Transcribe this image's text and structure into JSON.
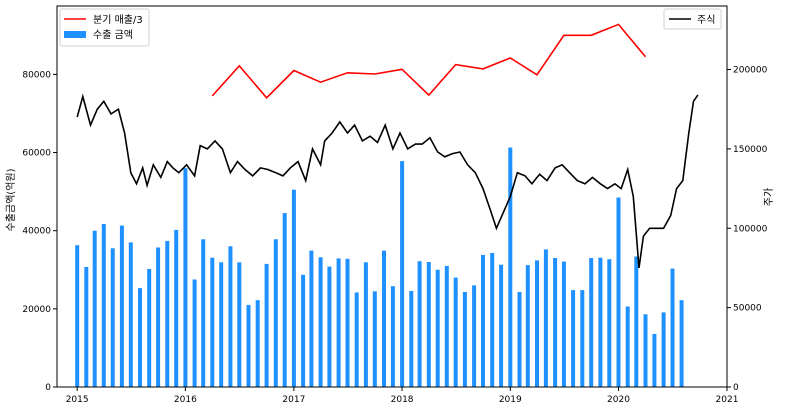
{
  "chart_data": {
    "type": "bar",
    "xlabel": "",
    "ylabel_left": "수출금액(억원)",
    "ylabel_right": "주가",
    "x_ticks": [
      "2015",
      "2016",
      "2017",
      "2018",
      "2019",
      "2020",
      "2021"
    ],
    "x_range": [
      "2014-10-25",
      "2021-01-01"
    ],
    "y_left_ticks": [
      "0",
      "20000",
      "40000",
      "60000",
      "80000"
    ],
    "y_left_range": [
      0,
      97500
    ],
    "y_right_ticks": [
      "0",
      "50000",
      "100000",
      "150000",
      "200000"
    ],
    "y_right_range": [
      0,
      240000
    ],
    "grid": false,
    "legend_left": {
      "position": "top-left",
      "entries": [
        "분기 매출/3",
        "수출 금액"
      ]
    },
    "legend_right": {
      "position": "top-right",
      "entries": [
        "주식"
      ]
    },
    "colors": {
      "bars": "#1e90ff",
      "sales": "#ff0000",
      "stock": "#000000"
    },
    "series": [
      {
        "name": "수출 금액",
        "kind": "bar",
        "axis": "left",
        "x": [
          "2015-01-01",
          "2015-02-01",
          "2015-03-01",
          "2015-04-01",
          "2015-05-01",
          "2015-06-01",
          "2015-07-01",
          "2015-08-01",
          "2015-09-01",
          "2015-10-01",
          "2015-11-01",
          "2015-12-01",
          "2016-01-01",
          "2016-02-01",
          "2016-03-01",
          "2016-04-01",
          "2016-05-01",
          "2016-06-01",
          "2016-07-01",
          "2016-08-01",
          "2016-09-01",
          "2016-10-01",
          "2016-11-01",
          "2016-12-01",
          "2017-01-01",
          "2017-02-01",
          "2017-03-01",
          "2017-04-01",
          "2017-05-01",
          "2017-06-01",
          "2017-07-01",
          "2017-08-01",
          "2017-09-01",
          "2017-10-01",
          "2017-11-01",
          "2017-12-01",
          "2018-01-01",
          "2018-02-01",
          "2018-03-01",
          "2018-04-01",
          "2018-05-01",
          "2018-06-01",
          "2018-07-01",
          "2018-08-01",
          "2018-09-01",
          "2018-10-01",
          "2018-11-01",
          "2018-12-01",
          "2019-01-01",
          "2019-02-01",
          "2019-03-01",
          "2019-04-01",
          "2019-05-01",
          "2019-06-01",
          "2019-07-01",
          "2019-08-01",
          "2019-09-01",
          "2019-10-01",
          "2019-11-01",
          "2019-12-01",
          "2020-01-01",
          "2020-02-01",
          "2020-03-01",
          "2020-04-01",
          "2020-05-01",
          "2020-06-01",
          "2020-07-01",
          "2020-08-01"
        ],
        "values": [
          36300,
          30700,
          40000,
          41700,
          35500,
          41300,
          37000,
          25300,
          30200,
          35700,
          37400,
          40200,
          56000,
          27500,
          37800,
          33100,
          31900,
          36000,
          31900,
          21000,
          22200,
          31500,
          37800,
          44500,
          50500,
          28700,
          34900,
          33200,
          30800,
          32900,
          32800,
          24200,
          31900,
          24500,
          34900,
          25800,
          57800,
          24600,
          32200,
          32000,
          30000,
          31000,
          28000,
          24300,
          26000,
          33800,
          34300,
          31300,
          61300,
          24300,
          31200,
          32400,
          35200,
          33000,
          32100,
          24800,
          24800,
          33000,
          33100,
          32700,
          48500,
          20600,
          33400,
          18600,
          13600,
          19100,
          30300,
          22200
        ]
      },
      {
        "name": "분기 매출/3",
        "kind": "line",
        "axis": "left",
        "x": [
          "2016-04-01",
          "2016-07-01",
          "2016-10-01",
          "2017-01-01",
          "2017-04-01",
          "2017-07-01",
          "2017-10-01",
          "2018-01-01",
          "2018-04-01",
          "2018-07-01",
          "2018-10-01",
          "2019-01-01",
          "2019-04-01",
          "2019-07-01",
          "2019-10-01",
          "2020-01-01",
          "2020-04-01"
        ],
        "values": [
          74500,
          82200,
          74000,
          81000,
          78000,
          80400,
          80100,
          81300,
          74700,
          82500,
          81400,
          84200,
          79900,
          90000,
          90000,
          92800,
          84500
        ]
      },
      {
        "name": "주식",
        "kind": "line",
        "axis": "right",
        "x": [
          "2015-01-01",
          "2015-01-20",
          "2015-02-15",
          "2015-03-10",
          "2015-04-01",
          "2015-04-25",
          "2015-05-20",
          "2015-06-10",
          "2015-07-01",
          "2015-07-20",
          "2015-08-10",
          "2015-08-25",
          "2015-09-15",
          "2015-10-10",
          "2015-11-01",
          "2015-11-20",
          "2015-12-10",
          "2016-01-05",
          "2016-02-01",
          "2016-02-20",
          "2016-03-15",
          "2016-04-10",
          "2016-05-05",
          "2016-06-01",
          "2016-06-25",
          "2016-07-20",
          "2016-08-15",
          "2016-09-10",
          "2016-10-05",
          "2016-11-01",
          "2016-11-25",
          "2016-12-20",
          "2017-01-15",
          "2017-02-10",
          "2017-03-05",
          "2017-04-01",
          "2017-04-15",
          "2017-05-10",
          "2017-06-05",
          "2017-07-01",
          "2017-07-25",
          "2017-08-20",
          "2017-09-15",
          "2017-10-10",
          "2017-11-05",
          "2017-12-01",
          "2017-12-25",
          "2018-01-20",
          "2018-02-15",
          "2018-03-10",
          "2018-04-05",
          "2018-05-01",
          "2018-05-25",
          "2018-06-20",
          "2018-07-15",
          "2018-08-10",
          "2018-09-05",
          "2018-10-01",
          "2018-10-25",
          "2018-11-15",
          "2019-01-01",
          "2019-01-25",
          "2019-02-20",
          "2019-03-15",
          "2019-04-10",
          "2019-05-05",
          "2019-06-01",
          "2019-06-25",
          "2019-07-20",
          "2019-08-15",
          "2019-09-10",
          "2019-10-05",
          "2019-11-01",
          "2019-11-25",
          "2019-12-20",
          "2020-01-10",
          "2020-02-01",
          "2020-02-20",
          "2020-03-10",
          "2020-03-25",
          "2020-04-15",
          "2020-05-10",
          "2020-06-01",
          "2020-06-25",
          "2020-07-15",
          "2020-08-05",
          "2020-08-25",
          "2020-09-10",
          "2020-09-25"
        ],
        "values": [
          170000,
          183000,
          165000,
          175000,
          180000,
          172000,
          175000,
          160000,
          135000,
          128000,
          138000,
          127000,
          140000,
          132000,
          142000,
          138000,
          135000,
          140000,
          133000,
          152000,
          150000,
          155000,
          150000,
          135000,
          142000,
          137000,
          133000,
          138000,
          137000,
          135000,
          133000,
          138000,
          142000,
          130000,
          150000,
          140000,
          155000,
          160000,
          167000,
          160000,
          165000,
          155000,
          158000,
          154000,
          165000,
          150000,
          160000,
          150000,
          153000,
          153000,
          157000,
          148000,
          145000,
          147000,
          148000,
          140000,
          135000,
          125000,
          112000,
          100000,
          120000,
          135000,
          133000,
          128000,
          134000,
          130000,
          138000,
          140000,
          135000,
          130000,
          128000,
          132000,
          128000,
          125000,
          128000,
          125000,
          137000,
          120000,
          75000,
          95000,
          100000,
          100000,
          100000,
          108000,
          125000,
          130000,
          160000,
          180000,
          184000
        ]
      }
    ]
  }
}
